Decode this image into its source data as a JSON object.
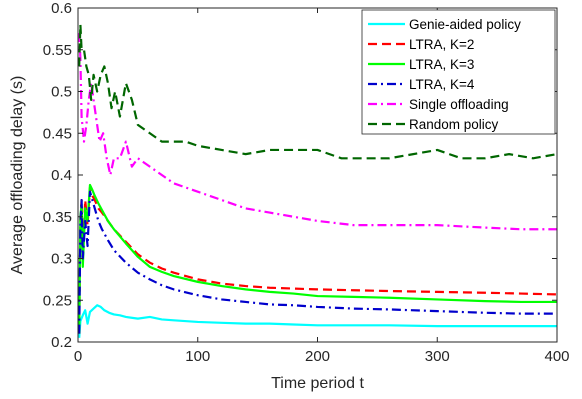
{
  "chart_data": {
    "type": "line",
    "title": "",
    "xlabel": "Time period t",
    "ylabel": "Average offloading delay (s)",
    "xlim": [
      0,
      400
    ],
    "ylim": [
      0.2,
      0.6
    ],
    "xticks": [
      0,
      100,
      200,
      300,
      400
    ],
    "yticks": [
      0.2,
      0.25,
      0.3,
      0.35,
      0.4,
      0.45,
      0.5,
      0.55,
      0.6
    ],
    "xtick_labels": [
      "0",
      "100",
      "200",
      "300",
      "400"
    ],
    "ytick_labels": [
      "0.2",
      "0.25",
      "0.3",
      "0.35",
      "0.4",
      "0.45",
      "0.5",
      "0.55",
      "0.6"
    ],
    "grid": false,
    "legend_position": "top-right",
    "series": [
      {
        "name": "Genie-aided policy",
        "color": "#00FFFF",
        "dash": "solid",
        "x": [
          1,
          2,
          4,
          6,
          8,
          10,
          13,
          16,
          19,
          22,
          26,
          30,
          35,
          40,
          50,
          60,
          70,
          80,
          100,
          120,
          140,
          160,
          180,
          200,
          230,
          260,
          300,
          340,
          370,
          400
        ],
        "y": [
          0.205,
          0.225,
          0.232,
          0.238,
          0.222,
          0.236,
          0.24,
          0.244,
          0.242,
          0.238,
          0.235,
          0.233,
          0.232,
          0.23,
          0.228,
          0.23,
          0.227,
          0.226,
          0.224,
          0.223,
          0.222,
          0.222,
          0.221,
          0.22,
          0.22,
          0.22,
          0.219,
          0.219,
          0.219,
          0.219
        ]
      },
      {
        "name": "LTRA, K=2",
        "color": "#FF0000",
        "dash": "dashed",
        "x": [
          1,
          2,
          3,
          4,
          6,
          8,
          10,
          12,
          14,
          17,
          20,
          25,
          30,
          40,
          50,
          60,
          70,
          80,
          100,
          120,
          140,
          160,
          180,
          200,
          230,
          260,
          300,
          340,
          370,
          400
        ],
        "y": [
          0.21,
          0.35,
          0.37,
          0.3,
          0.37,
          0.34,
          0.385,
          0.375,
          0.37,
          0.36,
          0.355,
          0.345,
          0.335,
          0.32,
          0.305,
          0.295,
          0.288,
          0.283,
          0.275,
          0.27,
          0.267,
          0.265,
          0.264,
          0.263,
          0.262,
          0.261,
          0.26,
          0.259,
          0.258,
          0.257
        ]
      },
      {
        "name": "LTRA, K=3",
        "color": "#00FF00",
        "dash": "solid",
        "x": [
          1,
          2,
          3,
          4,
          6,
          8,
          10,
          12,
          14,
          17,
          20,
          25,
          30,
          40,
          50,
          60,
          70,
          80,
          100,
          120,
          140,
          160,
          180,
          200,
          230,
          260,
          300,
          340,
          370,
          400
        ],
        "y": [
          0.21,
          0.35,
          0.365,
          0.29,
          0.36,
          0.345,
          0.388,
          0.382,
          0.375,
          0.366,
          0.358,
          0.345,
          0.335,
          0.318,
          0.302,
          0.29,
          0.284,
          0.279,
          0.272,
          0.267,
          0.263,
          0.26,
          0.258,
          0.255,
          0.254,
          0.253,
          0.251,
          0.249,
          0.248,
          0.248
        ]
      },
      {
        "name": "LTRA, K=4",
        "color": "#0000CC",
        "dash": "dashdot",
        "x": [
          1,
          2,
          3,
          4,
          6,
          8,
          10,
          12,
          14,
          17,
          20,
          25,
          30,
          40,
          50,
          60,
          70,
          80,
          100,
          120,
          140,
          160,
          180,
          200,
          230,
          260,
          300,
          340,
          370,
          400
        ],
        "y": [
          0.21,
          0.34,
          0.37,
          0.3,
          0.345,
          0.315,
          0.38,
          0.37,
          0.36,
          0.345,
          0.335,
          0.322,
          0.31,
          0.295,
          0.283,
          0.275,
          0.268,
          0.263,
          0.256,
          0.251,
          0.248,
          0.245,
          0.244,
          0.242,
          0.24,
          0.239,
          0.237,
          0.235,
          0.234,
          0.234
        ]
      },
      {
        "name": "Single offloading",
        "color": "#FF00FF",
        "dash": "dashdot",
        "x": [
          1,
          2,
          3,
          5,
          7,
          9,
          11,
          13,
          15,
          18,
          21,
          24,
          27,
          30,
          35,
          40,
          45,
          50,
          60,
          70,
          80,
          100,
          120,
          140,
          160,
          180,
          200,
          230,
          260,
          300,
          340,
          370,
          400
        ],
        "y": [
          0.57,
          0.54,
          0.47,
          0.44,
          0.46,
          0.49,
          0.51,
          0.49,
          0.47,
          0.44,
          0.45,
          0.42,
          0.4,
          0.42,
          0.42,
          0.44,
          0.41,
          0.42,
          0.41,
          0.4,
          0.39,
          0.38,
          0.37,
          0.36,
          0.355,
          0.35,
          0.345,
          0.34,
          0.34,
          0.34,
          0.337,
          0.335,
          0.335
        ]
      },
      {
        "name": "Random policy",
        "color": "#006600",
        "dash": "dashed",
        "x": [
          1,
          2,
          3,
          5,
          7,
          9,
          11,
          13,
          16,
          19,
          22,
          25,
          28,
          31,
          35,
          40,
          45,
          50,
          60,
          70,
          80,
          90,
          100,
          120,
          140,
          160,
          180,
          200,
          220,
          240,
          260,
          280,
          300,
          320,
          340,
          360,
          380,
          400
        ],
        "y": [
          0.53,
          0.58,
          0.55,
          0.55,
          0.53,
          0.52,
          0.49,
          0.52,
          0.5,
          0.52,
          0.53,
          0.51,
          0.48,
          0.5,
          0.47,
          0.51,
          0.49,
          0.46,
          0.45,
          0.44,
          0.44,
          0.44,
          0.435,
          0.43,
          0.425,
          0.43,
          0.43,
          0.43,
          0.42,
          0.42,
          0.42,
          0.425,
          0.43,
          0.42,
          0.42,
          0.425,
          0.42,
          0.425
        ]
      }
    ]
  }
}
